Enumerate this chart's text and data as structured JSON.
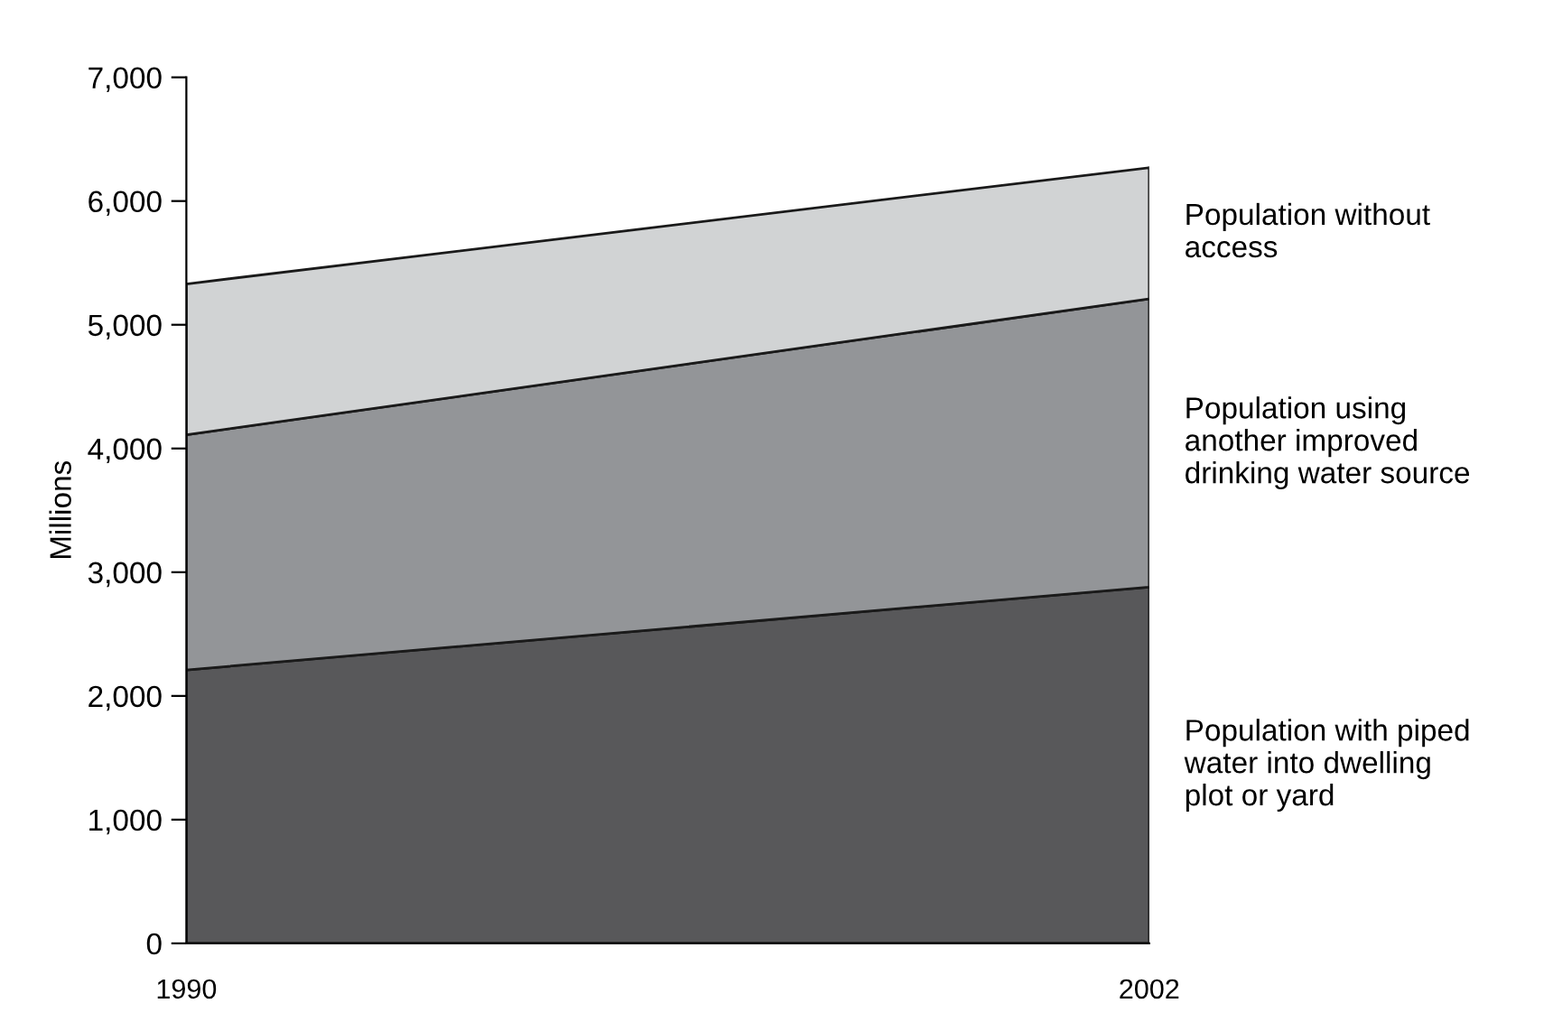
{
  "chart_data": {
    "type": "area",
    "stacked": true,
    "ylabel": "Millions",
    "x": [
      1990,
      2002
    ],
    "xlim": [
      1990,
      2002
    ],
    "xticks": [
      1990,
      2002
    ],
    "ylim": [
      0,
      7000
    ],
    "yticks": [
      {
        "value": 0,
        "label": "0"
      },
      {
        "value": 1000,
        "label": "1,000"
      },
      {
        "value": 2000,
        "label": "2,000"
      },
      {
        "value": 3000,
        "label": "3,000"
      },
      {
        "value": 4000,
        "label": "4,000"
      },
      {
        "value": 5000,
        "label": "5,000"
      },
      {
        "value": 6000,
        "label": "6,000"
      },
      {
        "value": 7000,
        "label": "7,000"
      }
    ],
    "grid": false,
    "legend": false,
    "series": [
      {
        "name": "Population with piped\nwater into dwelling\nplot or yard",
        "color": "#58585a",
        "values": [
          2210,
          2880
        ]
      },
      {
        "name": "Population using\nanother improved\ndrinking water source",
        "color": "#939598",
        "values": [
          1900,
          2330
        ]
      },
      {
        "name": "Population without\naccess",
        "color": "#d1d3d4",
        "values": [
          1220,
          1060
        ]
      }
    ]
  }
}
